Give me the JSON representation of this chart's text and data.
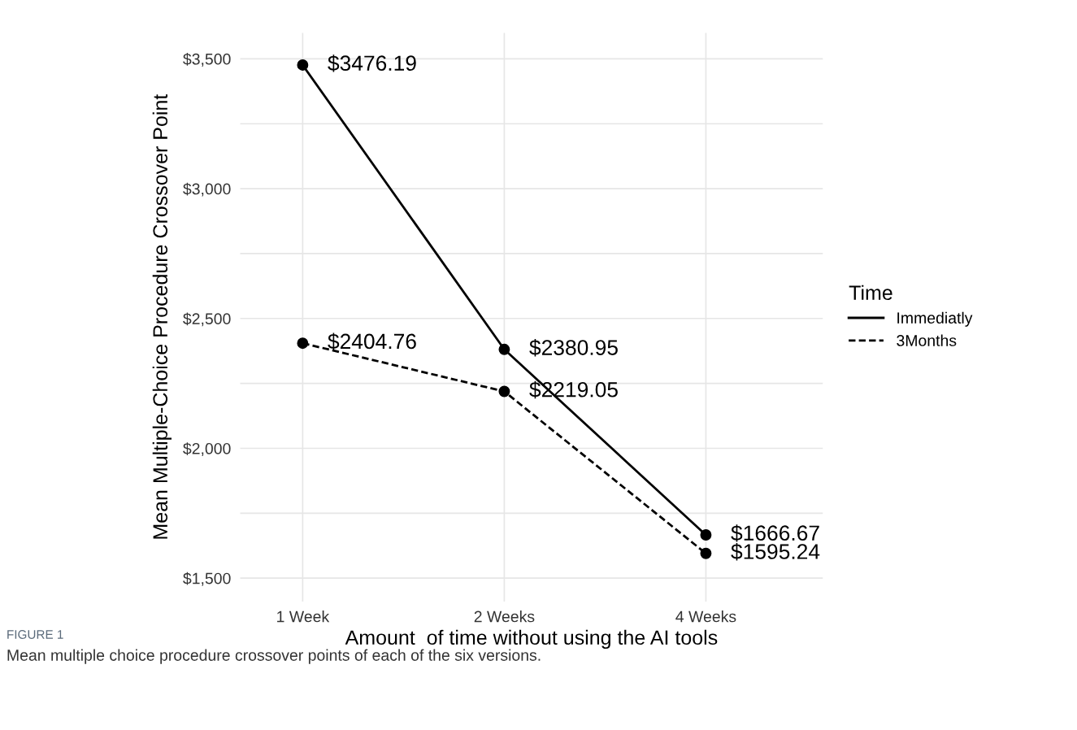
{
  "chart_data": {
    "type": "line",
    "xlabel": "Amount  of time without using the AI tools",
    "ylabel": "Mean Multiple-Choice Procedure Crossover Point",
    "legend_title": "Time",
    "categories": [
      "1 Week",
      "2 Weeks",
      "4 Weeks"
    ],
    "series": [
      {
        "name": "Immediatly",
        "color": "#000000",
        "line_style": "solid",
        "values": [
          3476.19,
          2380.95,
          1666.67
        ],
        "value_labels": [
          "$3476.19",
          "$2380.95",
          "$1666.67"
        ]
      },
      {
        "name": "3Months",
        "color": "#000000",
        "line_style": "dashed",
        "values": [
          2404.76,
          2219.05,
          1595.24
        ],
        "value_labels": [
          "$2404.76",
          "$2219.05",
          "$1595.24"
        ]
      }
    ],
    "marker": "circle",
    "ylim": [
      1410,
      3600
    ],
    "yticks": [
      {
        "value": 1500,
        "label": "$1,500"
      },
      {
        "value": 1750,
        "label": null
      },
      {
        "value": 2000,
        "label": "$2,000"
      },
      {
        "value": 2250,
        "label": null
      },
      {
        "value": 2500,
        "label": "$2,500"
      },
      {
        "value": 2750,
        "label": null
      },
      {
        "value": 3000,
        "label": "$3,000"
      },
      {
        "value": 3250,
        "label": null
      },
      {
        "value": 3500,
        "label": "$3,500"
      }
    ],
    "grid": true,
    "legend": "right",
    "annotations": [
      "FIGURE 1",
      "Mean multiple choice procedure crossover points of each of the six versions."
    ]
  }
}
